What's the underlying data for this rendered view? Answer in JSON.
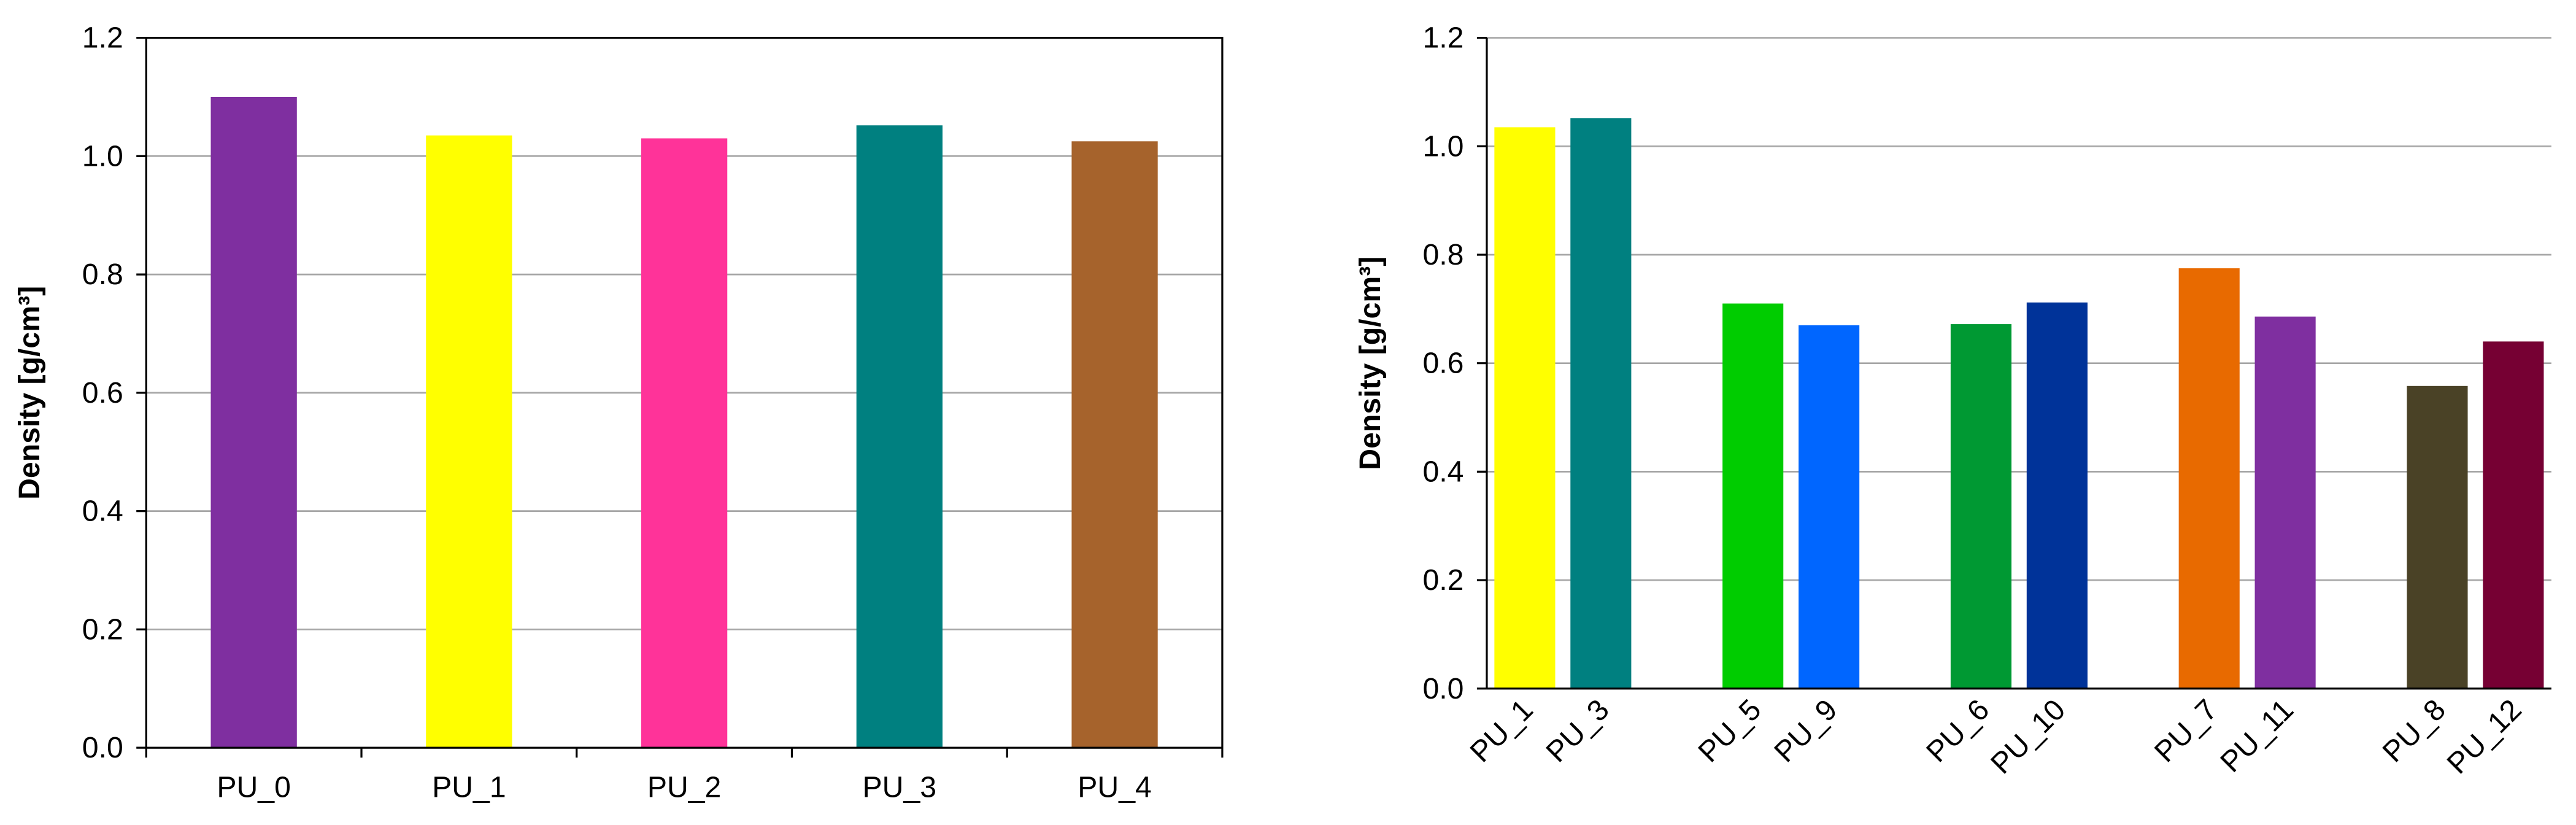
{
  "chart_data": [
    {
      "type": "bar",
      "y_label": "Density [g/cm³]",
      "categories": [
        "PU_0",
        "PU_1",
        "PU_2",
        "PU_3",
        "PU_4"
      ],
      "values": [
        1.1,
        1.035,
        1.03,
        1.052,
        1.025
      ],
      "colors": [
        "#7f2fa0",
        "#ffff00",
        "#ff3399",
        "#008080",
        "#a6632c"
      ],
      "ylim": [
        0,
        1.2
      ],
      "yticks": [
        {
          "value": 0,
          "label": "0.0"
        },
        0.2,
        0.4,
        0.6,
        0.8,
        {
          "value": 1,
          "label": "1.0"
        },
        1.2
      ],
      "grid": true
    },
    {
      "type": "bar",
      "y_label": "Density [g/cm³]",
      "categories": [
        "PU_1",
        "PU_3",
        null,
        "PU_5",
        "PU_9",
        null,
        "PU_6",
        "PU_10",
        null,
        "PU_7",
        "PU_11",
        null,
        "PU_8",
        "PU_12"
      ],
      "values": [
        1.035,
        1.052,
        null,
        0.71,
        0.67,
        null,
        0.672,
        0.712,
        null,
        0.775,
        0.686,
        null,
        0.558,
        0.64
      ],
      "colors": [
        "#ffff00",
        "#008080",
        null,
        "#00cc00",
        "#0066ff",
        null,
        "#009933",
        "#003399",
        null,
        "#e86a00",
        "#7f2fa0",
        null,
        "#4a4226",
        "#760033"
      ],
      "ylim": [
        0,
        1.2
      ],
      "yticks": [
        {
          "value": 0,
          "label": "0.0"
        },
        0.2,
        0.4,
        0.6,
        0.8,
        {
          "value": 1,
          "label": "1.0"
        },
        1.2
      ],
      "grid": true
    }
  ]
}
